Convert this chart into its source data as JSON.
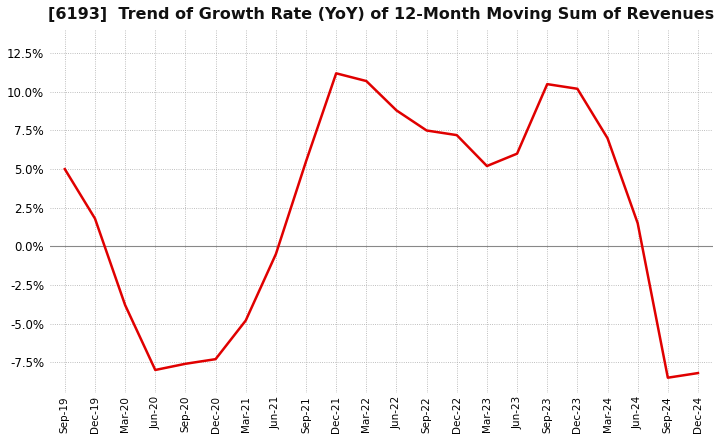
{
  "title": "[6193]  Trend of Growth Rate (YoY) of 12-Month Moving Sum of Revenues",
  "title_fontsize": 11.5,
  "line_color": "#e00000",
  "background_color": "#ffffff",
  "grid_color": "#aaaaaa",
  "zero_line_color": "#888888",
  "ylim": [
    -9.5,
    14.0
  ],
  "yticks": [
    -7.5,
    -5.0,
    -2.5,
    0.0,
    2.5,
    5.0,
    7.5,
    10.0,
    12.5
  ],
  "dates": [
    "Sep-19",
    "Dec-19",
    "Mar-20",
    "Jun-20",
    "Sep-20",
    "Dec-20",
    "Mar-21",
    "Jun-21",
    "Sep-21",
    "Dec-21",
    "Mar-22",
    "Jun-22",
    "Sep-22",
    "Dec-22",
    "Mar-23",
    "Jun-23",
    "Sep-23",
    "Dec-23",
    "Mar-24",
    "Jun-24",
    "Sep-24",
    "Dec-24"
  ],
  "values": [
    5.0,
    1.8,
    -3.8,
    -8.0,
    -7.6,
    -7.3,
    -4.8,
    -0.5,
    5.5,
    11.2,
    10.7,
    8.8,
    7.5,
    7.2,
    5.2,
    6.0,
    10.5,
    10.2,
    7.0,
    1.5,
    -8.5,
    -8.2
  ]
}
